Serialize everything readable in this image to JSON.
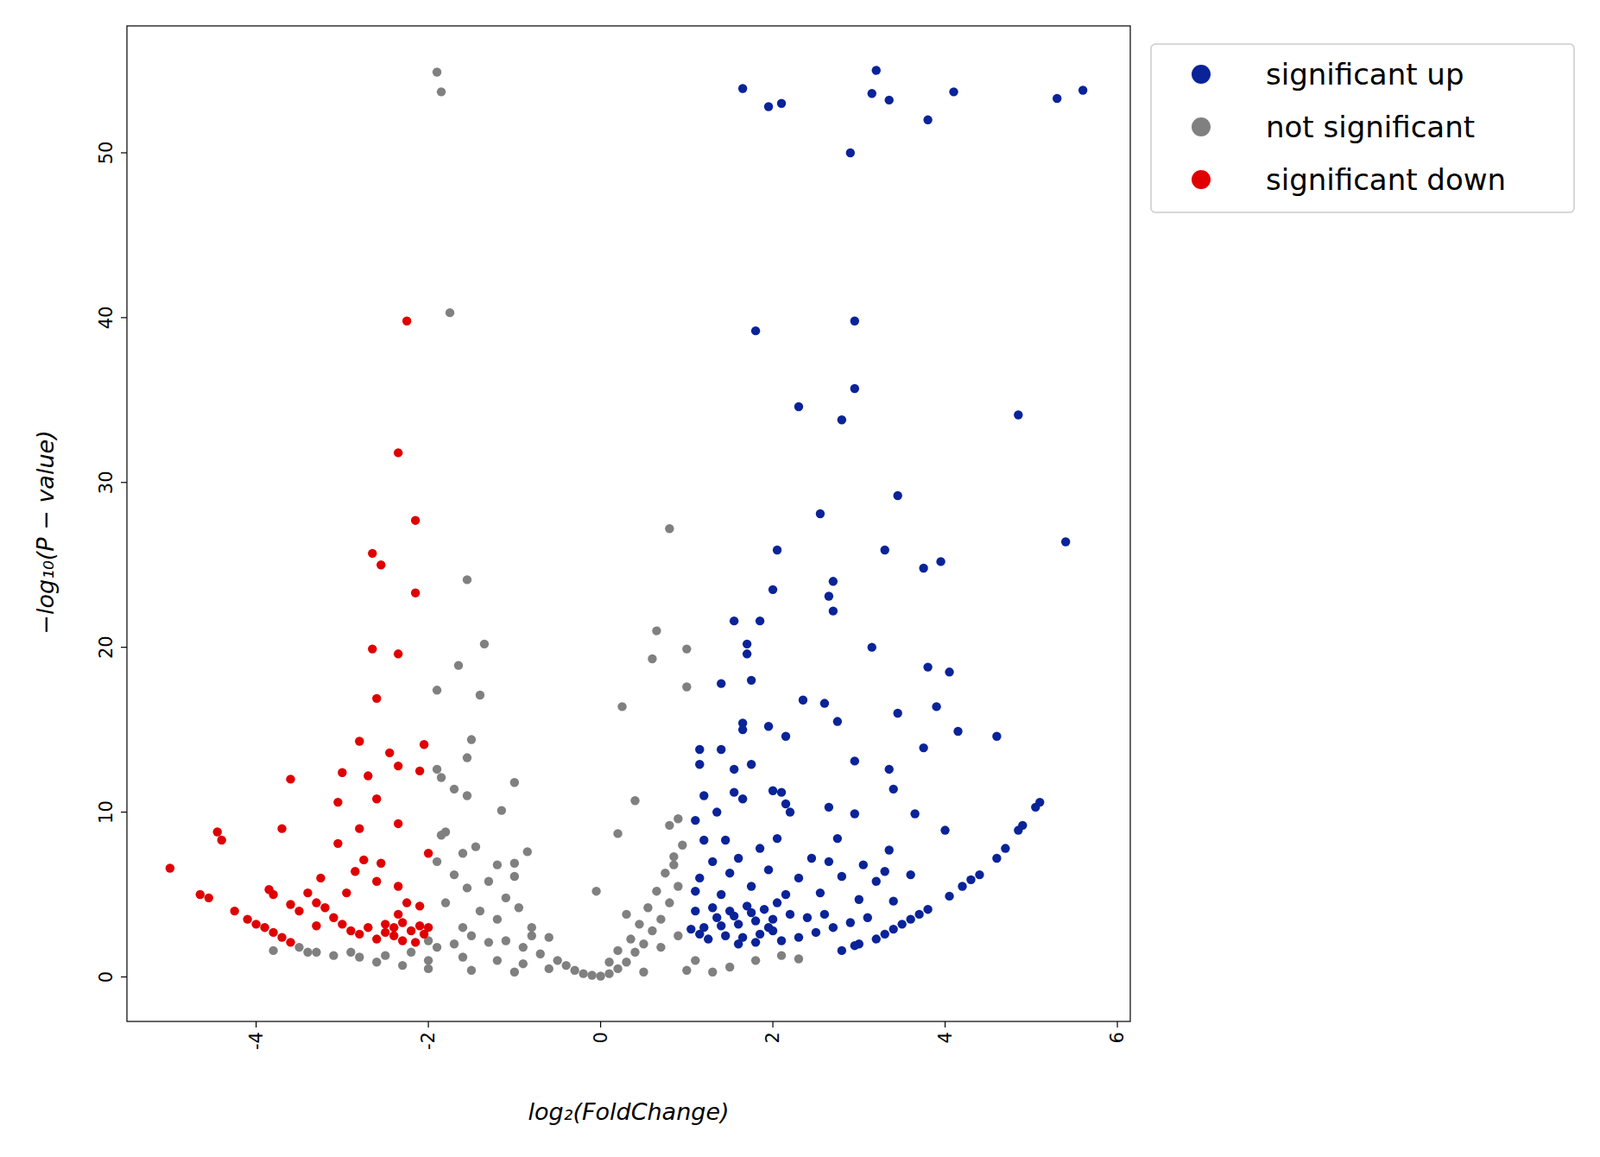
{
  "chart_data": {
    "type": "scatter",
    "x_label": "log₂(FoldChange)",
    "y_label": "−log₁₀(P − value)",
    "xlim": [
      -5.5,
      6.15
    ],
    "ylim": [
      -2.7,
      57.7
    ],
    "xticks": [
      -4,
      -2,
      0,
      2,
      4,
      6
    ],
    "yticks": [
      0,
      10,
      20,
      30,
      40,
      50
    ],
    "legend": "right",
    "grid": false,
    "marker": "circle",
    "series": [
      {
        "name": "significant up",
        "color": "#0a2399",
        "x": [
          1.65,
          1.95,
          2.1,
          2.9,
          3.2,
          3.15,
          3.35,
          3.8,
          4.1,
          5.3,
          5.6,
          1.8,
          2.95,
          2.95,
          2.3,
          2.8,
          4.85,
          3.45,
          2.55,
          5.4,
          2.05,
          3.3,
          3.75,
          3.95,
          2.7,
          2.65,
          2.0,
          2.7,
          1.55,
          1.85,
          1.7,
          1.7,
          3.15,
          1.4,
          1.75,
          3.8,
          4.05,
          2.35,
          2.6,
          3.45,
          3.9,
          1.65,
          1.65,
          1.95,
          2.15,
          2.75,
          4.15,
          4.6,
          1.15,
          1.4,
          3.75,
          1.15,
          1.55,
          1.75,
          2.95,
          3.35,
          2.0,
          2.1,
          1.2,
          1.55,
          1.65,
          3.4,
          2.15,
          2.2,
          2.65,
          5.1,
          5.05,
          1.1,
          1.35,
          2.95,
          3.65,
          4.9,
          4.85,
          4.0,
          1.2,
          1.45,
          2.05,
          2.75,
          1.85,
          3.35,
          4.7,
          4.6,
          1.3,
          1.6,
          2.45,
          2.65,
          3.05,
          3.3,
          4.4,
          4.3,
          4.2,
          1.15,
          1.5,
          1.95,
          2.3,
          2.8,
          3.2,
          3.6,
          4.05,
          1.1,
          1.4,
          1.75,
          2.15,
          2.55,
          3.0,
          3.4,
          3.8,
          3.7,
          3.6,
          3.5,
          3.4,
          3.3,
          3.2,
          3.0,
          2.95,
          2.8,
          3.1,
          2.9,
          2.7,
          2.5,
          2.3,
          2.1,
          2.6,
          2.4,
          2.2,
          2.0,
          1.8,
          1.6,
          1.4,
          1.2,
          1.05,
          1.1,
          1.3,
          1.5,
          1.7,
          1.9,
          2.05,
          1.25,
          1.45,
          1.65,
          1.85,
          2.0,
          1.35,
          1.55,
          1.75,
          1.15,
          1.95,
          1.6,
          1.8
        ],
        "values": [
          53.9,
          52.8,
          53.0,
          50.0,
          55.0,
          53.6,
          53.2,
          52.0,
          53.7,
          53.3,
          53.8,
          39.2,
          39.8,
          35.7,
          34.6,
          33.8,
          34.1,
          29.2,
          28.1,
          26.4,
          25.9,
          25.9,
          24.8,
          25.2,
          24.0,
          23.1,
          23.5,
          22.2,
          21.6,
          21.6,
          20.2,
          19.6,
          20.0,
          17.8,
          18.0,
          18.8,
          18.5,
          16.8,
          16.6,
          16.0,
          16.4,
          15.4,
          15.0,
          15.2,
          14.6,
          15.5,
          14.9,
          14.6,
          13.8,
          13.8,
          13.9,
          12.9,
          12.6,
          12.9,
          13.1,
          12.6,
          11.3,
          11.2,
          11.0,
          11.2,
          10.8,
          11.4,
          10.5,
          10.0,
          10.3,
          10.6,
          10.3,
          9.5,
          10.0,
          9.9,
          9.9,
          9.2,
          8.9,
          8.9,
          8.3,
          8.3,
          8.4,
          8.4,
          7.8,
          7.7,
          7.8,
          7.2,
          7.0,
          7.2,
          7.2,
          7.0,
          6.8,
          6.4,
          6.2,
          5.9,
          5.5,
          6.0,
          6.3,
          6.5,
          6.0,
          6.1,
          5.8,
          6.2,
          4.9,
          5.2,
          5.0,
          5.5,
          5.0,
          5.1,
          4.7,
          4.6,
          4.1,
          3.8,
          3.5,
          3.2,
          2.9,
          2.6,
          2.3,
          2.0,
          1.9,
          1.6,
          3.6,
          3.3,
          3.0,
          2.7,
          2.4,
          2.2,
          3.8,
          3.6,
          3.8,
          3.5,
          3.4,
          3.2,
          3.1,
          3.0,
          2.9,
          4.0,
          4.2,
          4.0,
          4.3,
          4.1,
          4.5,
          2.3,
          2.5,
          2.4,
          2.6,
          2.8,
          3.6,
          3.7,
          3.9,
          2.6,
          3.0,
          2.0,
          2.1
        ]
      },
      {
        "name": "not significant",
        "color": "#808080",
        "x": [
          -1.9,
          -1.85,
          -1.75,
          -1.55,
          -1.35,
          -1.65,
          -1.9,
          -1.4,
          -1.5,
          -1.55,
          -1.9,
          -1.85,
          -1.7,
          -1.55,
          -1.0,
          -1.15,
          -1.85,
          -1.8,
          -1.6,
          -1.45,
          -0.85,
          -1.2,
          -1.9,
          -1.7,
          -1.0,
          -1.3,
          -1.55,
          -1.1,
          -0.95,
          -1.8,
          -1.4,
          -1.2,
          -0.8,
          -0.6,
          -1.6,
          -2.0,
          -1.9,
          -1.7,
          -1.5,
          -1.3,
          -1.1,
          -0.9,
          -0.7,
          -0.5,
          -0.4,
          -0.3,
          -0.2,
          -0.1,
          0,
          0.1,
          0.2,
          -2.2,
          -2.5,
          -2.8,
          -3.1,
          -3.3,
          -3.5,
          -2.0,
          -1.6,
          -1.2,
          -0.9,
          -0.6,
          0.3,
          0.4,
          0.5,
          0.6,
          0.7,
          0.8,
          0.9,
          0.55,
          0.65,
          0.75,
          0.85,
          0.45,
          0.35,
          0.2,
          0.1,
          -0.05,
          0.2,
          0.4,
          0.8,
          0.9,
          0.8,
          0.65,
          1.0,
          0.6,
          1.0,
          0.25,
          0.95,
          0.85,
          1.5,
          1.8,
          2.1,
          2.3,
          -3.8,
          -3.4,
          -2.9,
          -2.6,
          -2.3,
          -2.0,
          -1.5,
          -1.0,
          0.5,
          1.0,
          1.3,
          1.1,
          -0.8,
          0.7,
          0.9,
          0.3,
          -1.0
        ],
        "values": [
          54.9,
          53.7,
          40.3,
          24.1,
          20.2,
          18.9,
          17.4,
          17.1,
          14.4,
          13.3,
          12.6,
          12.1,
          11.4,
          11.0,
          11.8,
          10.1,
          8.6,
          8.8,
          7.5,
          7.9,
          7.6,
          6.8,
          7.0,
          6.2,
          6.1,
          5.8,
          5.4,
          4.8,
          4.2,
          4.5,
          4.0,
          3.5,
          3.0,
          2.4,
          3.0,
          2.2,
          1.8,
          2.0,
          2.5,
          2.1,
          2.2,
          1.8,
          1.4,
          1.0,
          0.7,
          0.4,
          0.2,
          0.1,
          0.05,
          0.2,
          0.5,
          1.5,
          1.3,
          1.2,
          1.3,
          1.5,
          1.8,
          1.0,
          1.2,
          1.0,
          0.8,
          0.5,
          0.9,
          1.5,
          2.0,
          2.8,
          3.5,
          4.5,
          5.5,
          4.2,
          5.2,
          6.3,
          7.3,
          3.2,
          2.3,
          1.6,
          0.9,
          5.2,
          8.7,
          10.7,
          9.2,
          9.6,
          27.2,
          21.0,
          19.9,
          19.3,
          17.6,
          16.4,
          8.0,
          6.8,
          0.6,
          1.0,
          1.3,
          1.1,
          1.6,
          1.5,
          1.5,
          0.9,
          0.7,
          0.5,
          0.4,
          0.3,
          0.3,
          0.4,
          0.3,
          1.0,
          2.5,
          1.8,
          2.5,
          3.8,
          6.9
        ]
      },
      {
        "name": "significant down",
        "color": "#e00000",
        "x": [
          -2.25,
          -2.35,
          -2.15,
          -2.65,
          -2.55,
          -2.15,
          -2.65,
          -2.35,
          -2.6,
          -2.8,
          -2.05,
          -2.45,
          -2.35,
          -3.0,
          -2.7,
          -3.6,
          -2.1,
          -2.6,
          -3.05,
          -2.8,
          -3.7,
          -2.35,
          -4.45,
          -4.4,
          -3.05,
          -2.0,
          -2.75,
          -2.55,
          -2.85,
          -5.0,
          -3.25,
          -2.6,
          -3.4,
          -2.35,
          -2.95,
          -4.65,
          -4.55,
          -3.3,
          -3.6,
          -3.85,
          -3.8,
          -4.25,
          -2.25,
          -2.1,
          -3.2,
          -3.5,
          -3.1,
          -4.1,
          -4.0,
          -3.9,
          -3.8,
          -3.7,
          -3.6,
          -3.3,
          -3.0,
          -2.9,
          -2.8,
          -2.7,
          -2.5,
          -2.4,
          -2.3,
          -2.2,
          -2.1,
          -2.05,
          -2.4,
          -2.6,
          -2.3,
          -2.15,
          -2.5,
          -2.35,
          -2.0
        ],
        "values": [
          39.8,
          31.8,
          27.7,
          25.7,
          25.0,
          23.3,
          19.9,
          19.6,
          16.9,
          14.3,
          14.1,
          13.6,
          12.8,
          12.4,
          12.2,
          12.0,
          12.5,
          10.8,
          10.6,
          9.0,
          9.0,
          9.3,
          8.8,
          8.3,
          8.1,
          7.5,
          7.1,
          6.9,
          6.4,
          6.6,
          6.0,
          5.8,
          5.1,
          5.5,
          5.1,
          5.0,
          4.8,
          4.5,
          4.4,
          5.3,
          5.0,
          4.0,
          4.5,
          4.3,
          4.2,
          4.0,
          3.6,
          3.5,
          3.2,
          3.0,
          2.7,
          2.4,
          2.1,
          3.1,
          3.2,
          2.8,
          2.6,
          3.0,
          3.2,
          3.0,
          3.3,
          2.8,
          3.1,
          2.6,
          2.5,
          2.3,
          2.2,
          2.1,
          2.7,
          3.8,
          3.0
        ]
      }
    ]
  }
}
